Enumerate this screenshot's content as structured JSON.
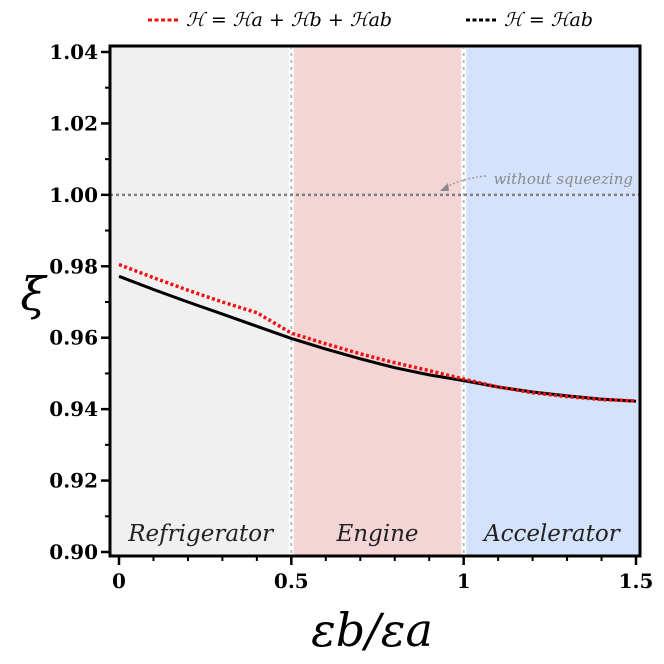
{
  "chart_data": {
    "type": "line",
    "xlabel": "εb/εa",
    "ylabel": "ξ",
    "xlim": [
      0,
      1.5
    ],
    "ylim": [
      0.9,
      1.04
    ],
    "x_ticks": [
      "0",
      "0.5",
      "1",
      "1.5"
    ],
    "y_ticks": [
      "0.90",
      "0.92",
      "0.94",
      "0.96",
      "0.98",
      "1.00",
      "1.02",
      "1.04"
    ],
    "legend": {
      "position": "top",
      "entries": [
        "ℋ = ℋa + ℋb + ℋab",
        "ℋ = ℋab"
      ]
    },
    "regions": [
      {
        "label": "Refrigerator",
        "x_range": [
          0,
          0.5
        ],
        "color": "#f0f0f0"
      },
      {
        "label": "Engine",
        "x_range": [
          0.5,
          1.0
        ],
        "color": "#f3d5d6"
      },
      {
        "label": "Accelerator",
        "x_range": [
          1.0,
          1.5
        ],
        "color": "#d4e3fb"
      }
    ],
    "reference_line": {
      "y": 1.0,
      "label": "without squeezing",
      "color": "#808080"
    },
    "series": [
      {
        "name": "ℋ = ℋa + ℋb + ℋab",
        "color": "#ee1111",
        "style": "dotted",
        "x": [
          0,
          0.1,
          0.2,
          0.3,
          0.4,
          0.5,
          0.6,
          0.7,
          0.8,
          0.9,
          1.0,
          1.1,
          1.2,
          1.3,
          1.4,
          1.5
        ],
        "y": [
          0.9805,
          0.9768,
          0.9733,
          0.97,
          0.967,
          0.9613,
          0.9583,
          0.9555,
          0.953,
          0.9508,
          0.9484,
          0.9462,
          0.9446,
          0.9435,
          0.9427,
          0.9423
        ]
      },
      {
        "name": "ℋ = ℋab",
        "color": "#000000",
        "style": "solid",
        "x": [
          0,
          0.1,
          0.2,
          0.3,
          0.4,
          0.5,
          0.6,
          0.7,
          0.8,
          0.9,
          1.0,
          1.1,
          1.2,
          1.3,
          1.4,
          1.5
        ],
        "y": [
          0.9772,
          0.9735,
          0.97,
          0.9666,
          0.9632,
          0.9598,
          0.9568,
          0.9541,
          0.9516,
          0.9496,
          0.948,
          0.9462,
          0.9448,
          0.9437,
          0.9428,
          0.9422
        ]
      }
    ]
  }
}
